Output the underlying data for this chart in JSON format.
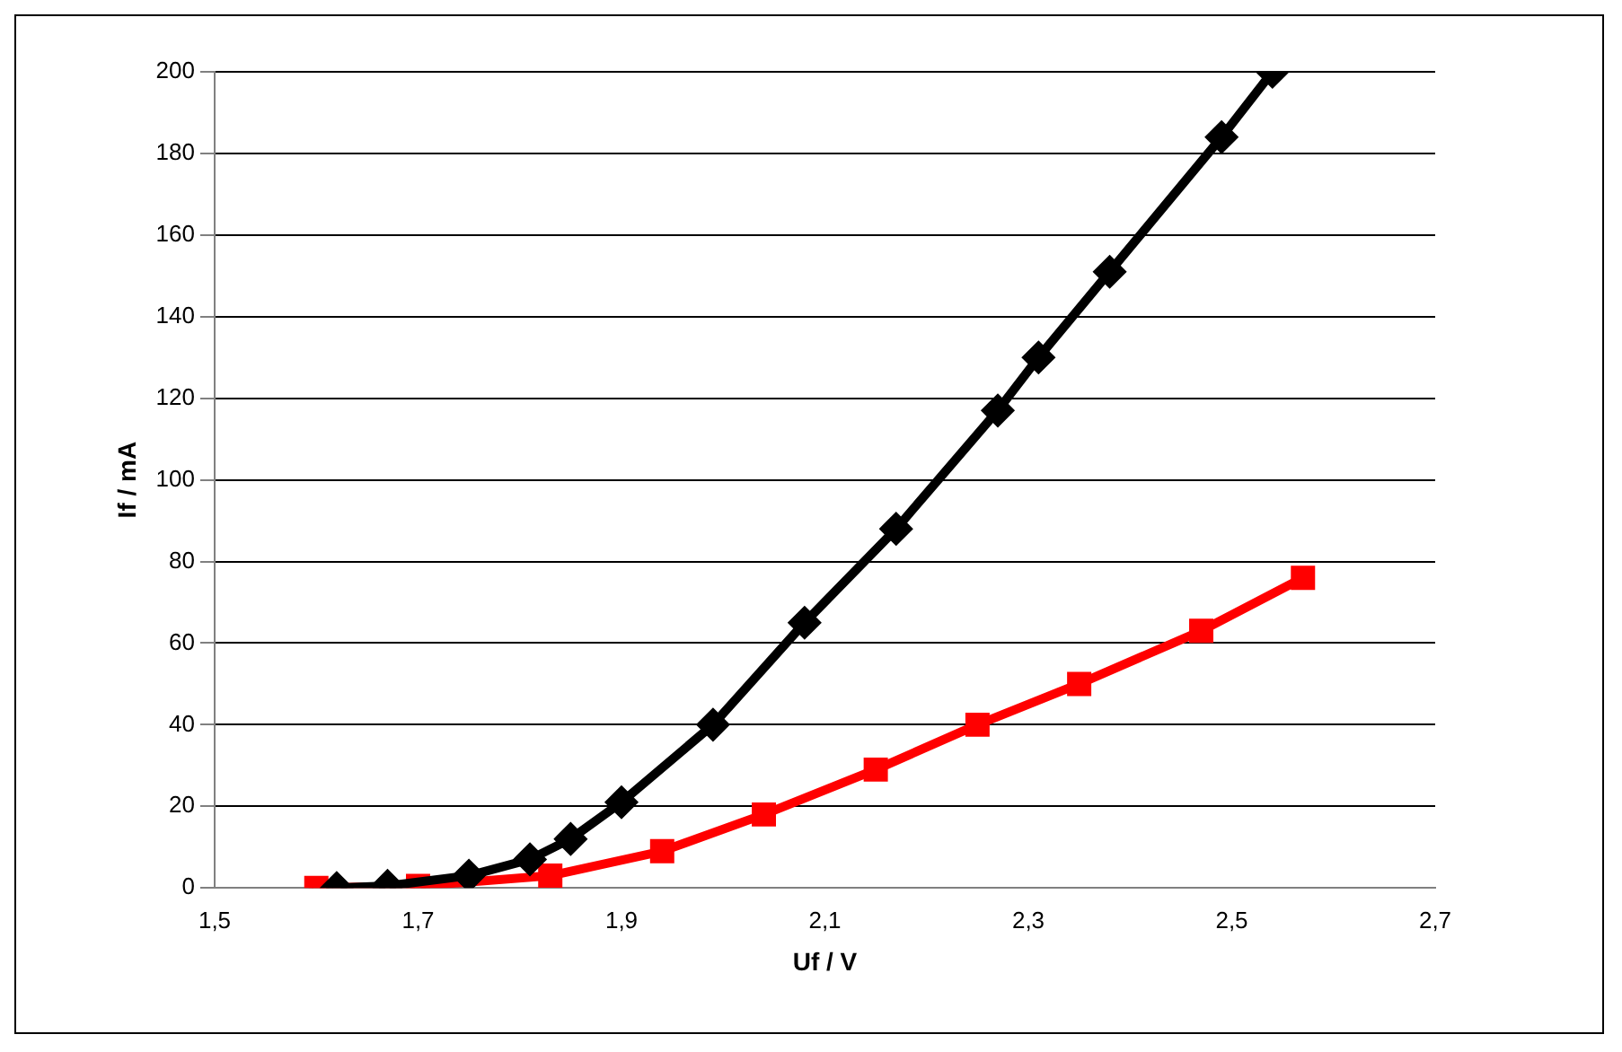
{
  "chart_data": {
    "type": "line",
    "xlabel": "Uf / V",
    "ylabel": "If / mA",
    "xlim": [
      1.5,
      2.7
    ],
    "xticks": [
      {
        "value": 1.5,
        "label": "1,5"
      },
      {
        "value": 1.7,
        "label": "1,7"
      },
      {
        "value": 1.9,
        "label": "1,9"
      },
      {
        "value": 2.1,
        "label": "2,1"
      },
      {
        "value": 2.3,
        "label": "2,3"
      },
      {
        "value": 2.5,
        "label": "2,5"
      },
      {
        "value": 2.7,
        "label": "2,7"
      }
    ],
    "ylim": [
      0,
      200
    ],
    "yticks": [
      0,
      20,
      40,
      60,
      80,
      100,
      120,
      140,
      160,
      180,
      200
    ],
    "grid": "y",
    "legend": false,
    "series": [
      {
        "color": "#000000",
        "marker": "diamond",
        "x": [
          1.62,
          1.67,
          1.75,
          1.81,
          1.85,
          1.9,
          1.99,
          2.08,
          2.17,
          2.27,
          2.31,
          2.38,
          2.49,
          2.54
        ],
        "values": [
          0,
          0.5,
          3,
          7,
          12,
          21,
          40,
          65,
          88,
          117,
          130,
          151,
          184,
          200
        ]
      },
      {
        "color": "#ff0000",
        "marker": "square",
        "x": [
          1.6,
          1.7,
          1.83,
          1.94,
          2.04,
          2.15,
          2.25,
          2.35,
          2.47,
          2.57
        ],
        "values": [
          0,
          0.5,
          3,
          9,
          18,
          29,
          40,
          50,
          63,
          76
        ]
      }
    ]
  }
}
